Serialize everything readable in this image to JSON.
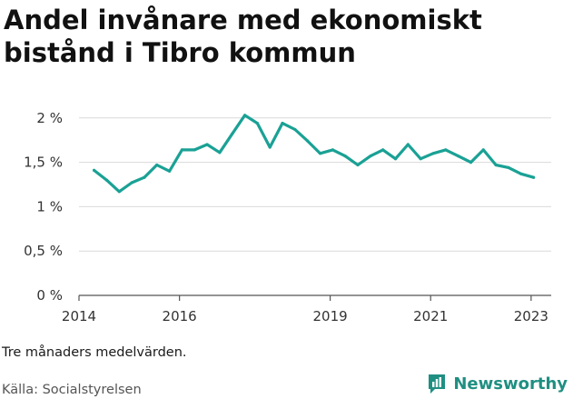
{
  "title": "Andel invånare med ekonomiskt bistånd i Tibro kommun",
  "note": "Tre månaders medelvärden.",
  "source": "Källa: Socialstyrelsen",
  "brand": "Newsworthy",
  "colors": {
    "line": "#1aa195",
    "grid": "#d9d9d9",
    "brand": "#1f8f82"
  },
  "chart_data": {
    "type": "line",
    "title": "Andel invånare med ekonomiskt bistånd i Tibro kommun",
    "xlabel": "",
    "ylabel": "",
    "x_ticks": [
      "2014",
      "2016",
      "2019",
      "2021",
      "2023"
    ],
    "x_tick_values": [
      2014,
      2016,
      2019,
      2021,
      2023
    ],
    "y_ticks": [
      "0 %",
      "0,5 %",
      "1 %",
      "1,5 %",
      "2 %"
    ],
    "y_tick_values": [
      0,
      0.5,
      1,
      1.5,
      2
    ],
    "xlim": [
      2014,
      2023.4
    ],
    "ylim": [
      0,
      2.1
    ],
    "grid": true,
    "series": [
      {
        "x": [
          2014.3,
          2014.55,
          2014.8,
          2015.05,
          2015.3,
          2015.55,
          2015.8,
          2016.05,
          2016.3,
          2016.55,
          2016.8,
          2017.05,
          2017.3,
          2017.55,
          2017.8,
          2018.05,
          2018.3,
          2018.55,
          2018.8,
          2019.05,
          2019.3,
          2019.55,
          2019.8,
          2020.05,
          2020.3,
          2020.55,
          2020.8,
          2021.05,
          2021.3,
          2021.55,
          2021.8,
          2022.05,
          2022.3,
          2022.55,
          2022.8,
          2023.05
        ],
        "values": [
          1.41,
          1.3,
          1.17,
          1.27,
          1.33,
          1.47,
          1.4,
          1.64,
          1.64,
          1.7,
          1.61,
          1.82,
          2.03,
          1.94,
          1.67,
          1.94,
          1.87,
          1.74,
          1.6,
          1.64,
          1.57,
          1.47,
          1.57,
          1.64,
          1.54,
          1.7,
          1.54,
          1.6,
          1.64,
          1.57,
          1.5,
          1.64,
          1.47,
          1.44,
          1.37,
          1.33
        ]
      }
    ]
  }
}
